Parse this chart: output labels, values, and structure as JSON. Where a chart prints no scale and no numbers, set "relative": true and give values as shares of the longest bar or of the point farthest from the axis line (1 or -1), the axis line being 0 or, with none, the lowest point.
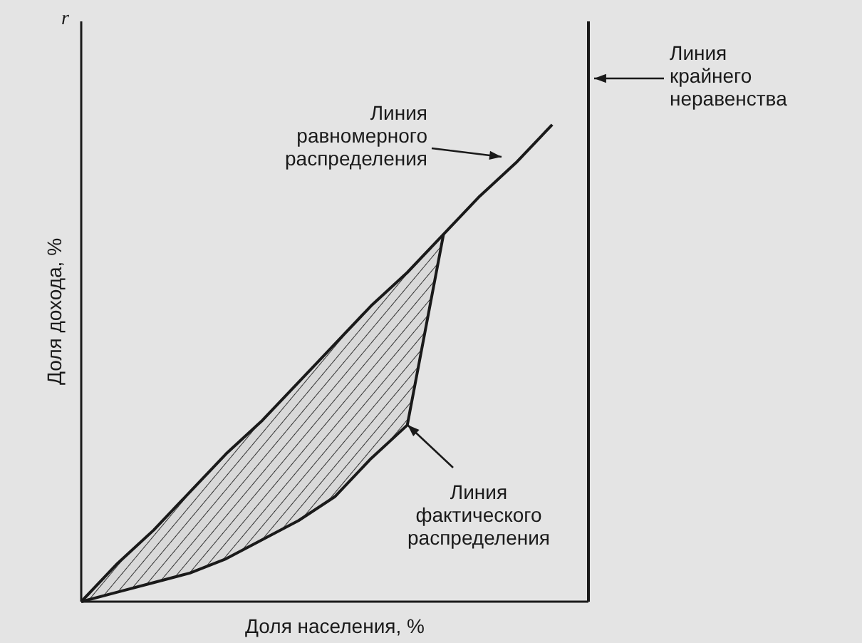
{
  "chart_data": {
    "type": "line",
    "relative": true,
    "xlabel": "Доля населения, %",
    "ylabel": "Доля дохода, %",
    "annotations": [
      "r",
      "Линия крайнего неравенства"
    ],
    "categories": [
      null,
      null,
      null,
      null,
      null,
      null,
      null,
      null,
      null,
      null,
      null,
      null,
      null,
      null,
      null
    ],
    "series": [
      {
        "name": "Линия равномерного распределения",
        "color": "#1a1a1a",
        "values": [
          0,
          0.08,
          0.15,
          0.23,
          0.31,
          0.38,
          0.46,
          0.54,
          0.62,
          0.69,
          0.77,
          0.85,
          0.92,
          1,
          null
        ]
      },
      {
        "name": "Линия фактического распределения",
        "color": "#1a1a1a",
        "values": [
          0,
          0.02,
          0.04,
          0.06,
          0.09,
          0.13,
          0.17,
          0.22,
          0.3,
          0.37,
          0.77,
          null,
          null,
          null,
          null
        ],
        "upper": [
          0,
          0.08,
          0.15,
          0.23,
          0.31,
          0.38,
          0.46,
          0.54,
          0.62,
          0.69,
          0.77,
          null,
          null,
          null,
          null
        ],
        "lower": [
          0,
          0.02,
          0.04,
          0.06,
          0.09,
          0.13,
          0.17,
          0.22,
          0.3,
          0.37,
          0.77,
          null,
          null,
          null,
          null
        ]
      }
    ],
    "marker": "none",
    "line_style": "solid",
    "grid": false,
    "legend": "bottom right"
  }
}
